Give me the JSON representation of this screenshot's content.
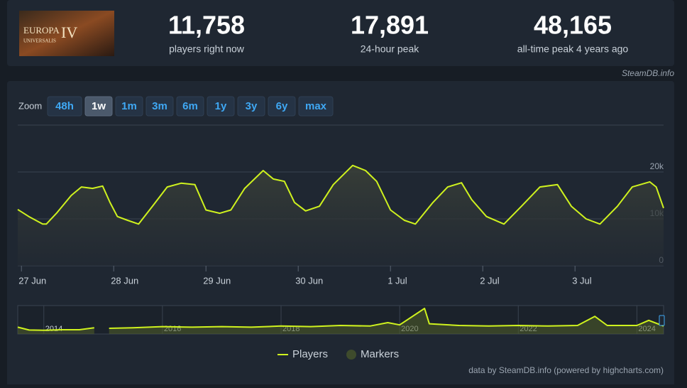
{
  "header": {
    "logo_lines": [
      "EUROPA",
      "UNIVERSALIS",
      "IV"
    ],
    "stats": [
      {
        "value": "11,758",
        "label": "players right now"
      },
      {
        "value": "17,891",
        "label": "24-hour peak"
      },
      {
        "value": "48,165",
        "label": "all-time peak 4 years ago"
      }
    ],
    "source": "SteamDB.info"
  },
  "zoom": {
    "label": "Zoom",
    "buttons": [
      "48h",
      "1w",
      "1m",
      "3m",
      "6m",
      "1y",
      "3y",
      "6y",
      "max"
    ],
    "active": 1
  },
  "chart_data": {
    "type": "line",
    "x": [
      -0.04,
      0.08,
      0.23,
      0.27,
      0.38,
      0.54,
      0.65,
      0.77,
      0.88,
      0.96,
      1.04,
      1.15,
      1.27,
      1.42,
      1.58,
      1.73,
      1.88,
      2.0,
      2.15,
      2.27,
      2.42,
      2.62,
      2.73,
      2.85,
      2.96,
      3.08,
      3.23,
      3.38,
      3.59,
      3.73,
      3.85,
      4.0,
      4.15,
      4.27,
      4.46,
      4.62,
      4.77,
      4.88,
      5.04,
      5.23,
      5.42,
      5.62,
      5.81,
      5.96,
      6.12,
      6.27,
      6.46,
      6.62,
      6.81,
      6.88,
      6.96
    ],
    "series": [
      {
        "name": "Players",
        "color": "#cff21e",
        "values": [
          12000,
          10500,
          8900,
          8900,
          11200,
          15000,
          16800,
          16500,
          17000,
          13500,
          10500,
          9700,
          8900,
          12700,
          16800,
          17600,
          17300,
          11900,
          11200,
          11900,
          16500,
          20300,
          18500,
          18000,
          13500,
          11700,
          12700,
          17300,
          21400,
          20300,
          18000,
          11900,
          9700,
          8900,
          13500,
          16800,
          17700,
          14100,
          10500,
          8900,
          12700,
          16800,
          17300,
          12700,
          10000,
          8900,
          12700,
          16800,
          17900,
          16800,
          12300
        ]
      }
    ],
    "xlim": [
      -0.04,
      6.96
    ],
    "xticks": [
      {
        "value": 0,
        "label": "27 Jun"
      },
      {
        "value": 1,
        "label": "28 Jun"
      },
      {
        "value": 2,
        "label": "29 Jun"
      },
      {
        "value": 3,
        "label": "30 Jun"
      },
      {
        "value": 4,
        "label": "1 Jul"
      },
      {
        "value": 5,
        "label": "2 Jul"
      },
      {
        "value": 6,
        "label": "3 Jul"
      }
    ],
    "ylim": [
      0,
      30000
    ],
    "yticks": [
      0,
      {
        "value": 10000,
        "label": "10k"
      },
      {
        "value": 20000,
        "label": "20k"
      }
    ],
    "grid": true,
    "legend_extra": {
      "name": "Markers",
      "color": "#3e4b2c"
    }
  },
  "navigator": {
    "type": "line",
    "x": [
      2013.56,
      2013.75,
      2014.0,
      2014.3,
      2014.6,
      2014.85,
      2014.95,
      2015.1,
      2015.5,
      2016.0,
      2016.5,
      2017.0,
      2017.5,
      2018.0,
      2018.5,
      2019.0,
      2019.5,
      2019.8,
      2020.0,
      2020.42,
      2020.5,
      2021.0,
      2021.5,
      2022.0,
      2022.5,
      2023.0,
      2023.29,
      2023.5,
      2024.0,
      2024.2,
      2024.45
    ],
    "values": [
      12000,
      7000,
      6500,
      7500,
      7500,
      11000,
      null,
      10000,
      11000,
      13000,
      12000,
      13000,
      12000,
      14000,
      13000,
      15000,
      14000,
      20000,
      16000,
      45000,
      18000,
      15000,
      14000,
      15000,
      14000,
      15000,
      31000,
      15000,
      15000,
      24000,
      14000
    ],
    "color": "#cff21e",
    "xlim": [
      2013.56,
      2024.45
    ],
    "ylim": [
      0,
      50000
    ],
    "xticks": [
      2014,
      2016,
      2018,
      2020,
      2022,
      2024
    ]
  },
  "credit": "data by SteamDB.info (powered by highcharts.com)"
}
